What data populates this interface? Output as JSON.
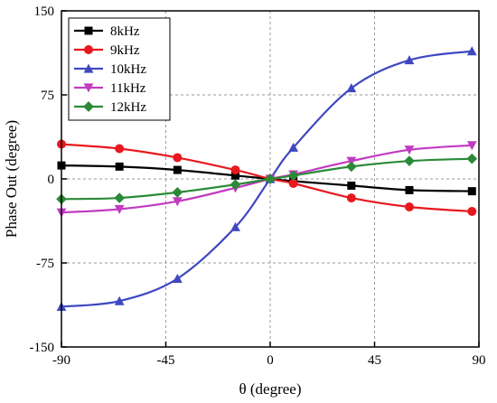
{
  "chart_data": {
    "type": "line",
    "xlabel": "θ  (degree)",
    "ylabel": "Phase Out (degree)",
    "xlim": [
      -90,
      90
    ],
    "ylim": [
      -150,
      150
    ],
    "xticks": [
      -90,
      -45,
      0,
      45,
      90
    ],
    "yticks": [
      -150,
      -75,
      0,
      75,
      150
    ],
    "xtick_labels": [
      "-90",
      "-45",
      "0",
      "45",
      "90"
    ],
    "ytick_labels": [
      "-150",
      "-75",
      "0",
      "75",
      "150"
    ],
    "grid": true,
    "legend_position": "top-left",
    "x": [
      -90,
      -65,
      -40,
      -15,
      0,
      10,
      35,
      60,
      87
    ],
    "series": [
      {
        "name": "8kHz",
        "color": "#000000",
        "marker": "square",
        "values": [
          12,
          11,
          8,
          3,
          0,
          -2,
          -6,
          -10,
          -11
        ]
      },
      {
        "name": "9kHz",
        "color": "#e8181e",
        "marker": "circle",
        "values": [
          31,
          27,
          19,
          8,
          0,
          -4,
          -17,
          -25,
          -29
        ]
      },
      {
        "name": "10kHz",
        "color": "#3f48c0",
        "marker": "triangle-up",
        "values": [
          -114,
          -109,
          -89,
          -43,
          0,
          28,
          81,
          106,
          114
        ]
      },
      {
        "name": "11kHz",
        "color": "#c13bc1",
        "marker": "triangle-down",
        "values": [
          -30,
          -27,
          -20,
          -8,
          0,
          4,
          16,
          26,
          30
        ]
      },
      {
        "name": "12kHz",
        "color": "#2a8a37",
        "marker": "diamond",
        "values": [
          -18,
          -17,
          -12,
          -5,
          0,
          3,
          11,
          16,
          18
        ]
      }
    ]
  }
}
